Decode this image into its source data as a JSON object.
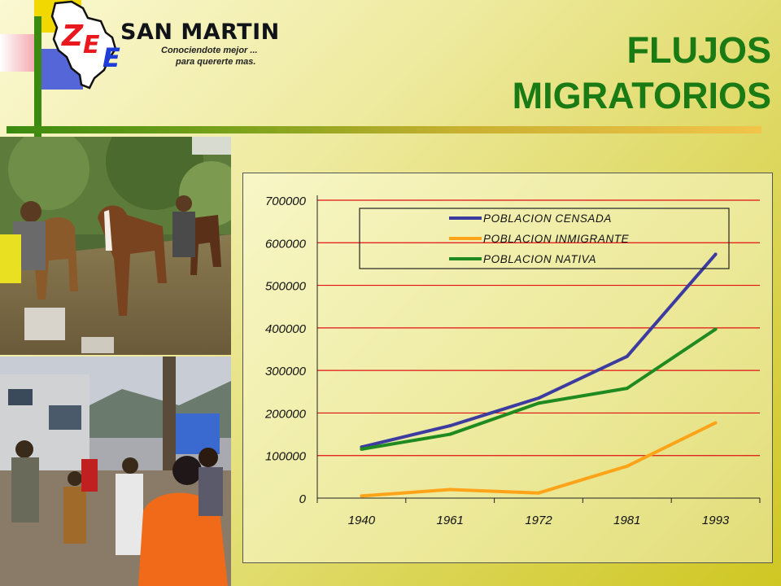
{
  "header": {
    "logo": {
      "letters": [
        "Z",
        "E",
        "E"
      ],
      "name": "SAN MARTIN",
      "tagline_1": "Conociendote mejor ...",
      "tagline_2": "para quererte mas."
    },
    "title_line_1": "FLUJOS",
    "title_line_2": "MIGRATORIOS"
  },
  "photos": [
    {
      "name": "mules-on-trail-photo"
    },
    {
      "name": "town-street-crowd-photo"
    }
  ],
  "colors": {
    "title": "#1a7a14",
    "gridline": "#e01010",
    "series_censada": "#3c3ca0",
    "series_inmigrante": "#ffa418",
    "series_nativa": "#1f8a1f"
  },
  "chart_data": {
    "type": "line",
    "title": "",
    "xlabel": "",
    "ylabel": "",
    "categories": [
      "1940",
      "1961",
      "1972",
      "1981",
      "1993"
    ],
    "ylim": [
      0,
      700000
    ],
    "yticks": [
      "0",
      "100000",
      "200000",
      "300000",
      "400000",
      "500000",
      "600000",
      "700000"
    ],
    "grid": true,
    "legend_position": "top",
    "series": [
      {
        "name": "POBLACION CENSADA",
        "color": "#3c3ca0",
        "values": [
          120000,
          170000,
          235000,
          333000,
          573000
        ]
      },
      {
        "name": "POBLACION INMIGRANTE",
        "color": "#ffa418",
        "values": [
          5000,
          20000,
          12000,
          75000,
          177000
        ]
      },
      {
        "name": "POBLACION NATIVA",
        "color": "#1f8a1f",
        "values": [
          115000,
          150000,
          223000,
          258000,
          397000
        ]
      }
    ]
  }
}
